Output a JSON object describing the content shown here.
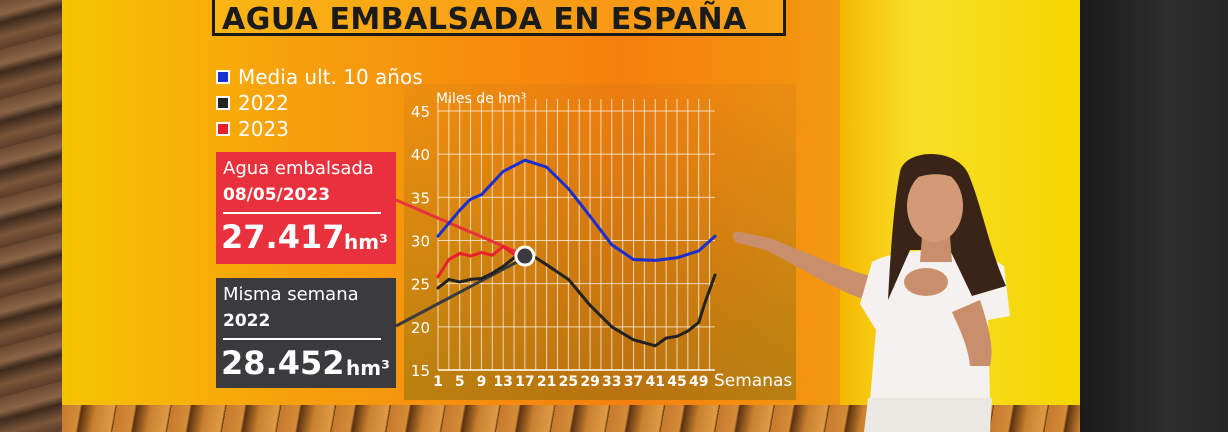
{
  "title": "AGUA EMBALSADA EN ESPAÑA",
  "legend": [
    {
      "label": "Media ult. 10 años",
      "color": "#1a2fd0"
    },
    {
      "label": "2022",
      "color": "#222222"
    },
    {
      "label": "2023",
      "color": "#e8202c"
    }
  ],
  "card_2023": {
    "label": "Agua embalsada",
    "date": "08/05/2023",
    "value": "27.417",
    "unit": "hm³",
    "color": "#e8313c"
  },
  "card_2022": {
    "label": "Misma semana",
    "year": "2022",
    "value": "28.452",
    "unit": "hm³",
    "color": "#3b3a3f"
  },
  "chart_data": {
    "type": "line",
    "ylabel": "Miles de hm³",
    "xlabel": "Semanas",
    "ylim": [
      15,
      45
    ],
    "yticks": [
      15,
      20,
      25,
      30,
      35,
      40,
      45
    ],
    "xlim": [
      1,
      52
    ],
    "xticks": [
      1,
      5,
      9,
      13,
      17,
      21,
      25,
      29,
      33,
      37,
      41,
      45,
      49
    ],
    "grid": true,
    "series": [
      {
        "name": "Media ult. 10 años",
        "color": "#1a2fd0",
        "x": [
          1,
          5,
          7,
          9,
          13,
          17,
          21,
          25,
          29,
          33,
          37,
          41,
          45,
          49,
          52
        ],
        "y": [
          30.5,
          33.5,
          34.8,
          35.3,
          38,
          39.3,
          38.5,
          36,
          32.8,
          29.5,
          27.8,
          27.7,
          28,
          28.8,
          30.5
        ]
      },
      {
        "name": "2022",
        "color": "#222222",
        "x": [
          1,
          3,
          5,
          7,
          9,
          11,
          13,
          15,
          17,
          21,
          25,
          29,
          33,
          37,
          41,
          43,
          45,
          47,
          49,
          50,
          52
        ],
        "y": [
          24.5,
          25.5,
          25.2,
          25.5,
          25.6,
          26.2,
          27,
          28,
          28.8,
          27.2,
          25.5,
          22.5,
          20,
          18.5,
          17.8,
          18.7,
          18.9,
          19.5,
          20.5,
          22.5,
          26
        ]
      },
      {
        "name": "2023",
        "color": "#e8202c",
        "x": [
          1,
          3,
          5,
          7,
          9,
          11,
          13,
          15,
          17
        ],
        "y": [
          25.8,
          27.8,
          28.5,
          28.2,
          28.6,
          28.3,
          29.3,
          28.4,
          27.8
        ]
      }
    ],
    "highlight": {
      "x": 17,
      "y": 28.2
    }
  }
}
